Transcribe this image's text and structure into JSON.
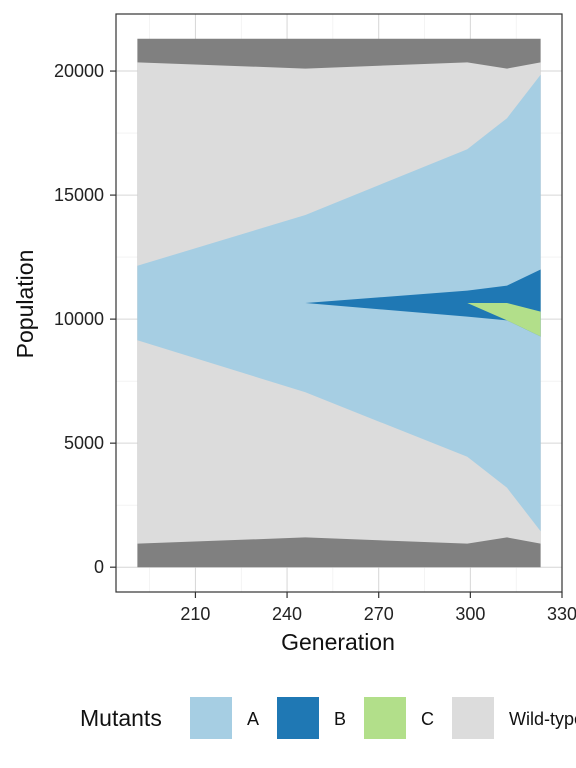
{
  "chart_data": {
    "type": "area",
    "xlabel": "Generation",
    "ylabel": "Population",
    "xlim": [
      184,
      330
    ],
    "ylim": [
      -1000,
      22300
    ],
    "xticks": [
      210,
      240,
      270,
      300,
      330
    ],
    "yticks": [
      0,
      5000,
      10000,
      15000,
      20000
    ],
    "xtick_labels": [
      "210",
      "240",
      "270",
      "300",
      "330"
    ],
    "ytick_labels": [
      "0",
      "5000",
      "10000",
      "15000",
      "20000"
    ],
    "grid": true,
    "legend": {
      "title": "Mutants",
      "position": "bottom",
      "entries": [
        {
          "label": "A",
          "color": "#a6cee3"
        },
        {
          "label": "B",
          "color": "#1f78b4"
        },
        {
          "label": "C",
          "color": "#b2df8a"
        },
        {
          "label": "Wild-type",
          "color": "#dcdcdc"
        }
      ]
    },
    "x": [
      191,
      246,
      299,
      312,
      323
    ],
    "series": [
      {
        "name": "frame",
        "color": "#808080",
        "lower": [
          0,
          0,
          0,
          0,
          0
        ],
        "upper": [
          21300,
          21300,
          21300,
          21300,
          21300
        ]
      },
      {
        "name": "Wild-type",
        "color": "#dcdcdc",
        "lower": [
          950,
          1200,
          950,
          1200,
          950
        ],
        "upper": [
          20350,
          20100,
          20350,
          20100,
          20350
        ]
      },
      {
        "name": "A",
        "color": "#a6cee3",
        "lower": [
          9150,
          7050,
          4450,
          3200,
          1450
        ],
        "upper": [
          12150,
          14200,
          16850,
          18100,
          19850
        ]
      },
      {
        "name": "B",
        "color": "#1f78b4",
        "lower": [
          10650,
          10650,
          10100,
          9950,
          9300
        ],
        "upper": [
          10650,
          10650,
          11150,
          11350,
          12000
        ]
      },
      {
        "name": "C",
        "color": "#b2df8a",
        "lower": [
          10650,
          10650,
          10650,
          9950,
          9300
        ],
        "upper": [
          10650,
          10650,
          10650,
          10650,
          10300
        ]
      }
    ]
  }
}
